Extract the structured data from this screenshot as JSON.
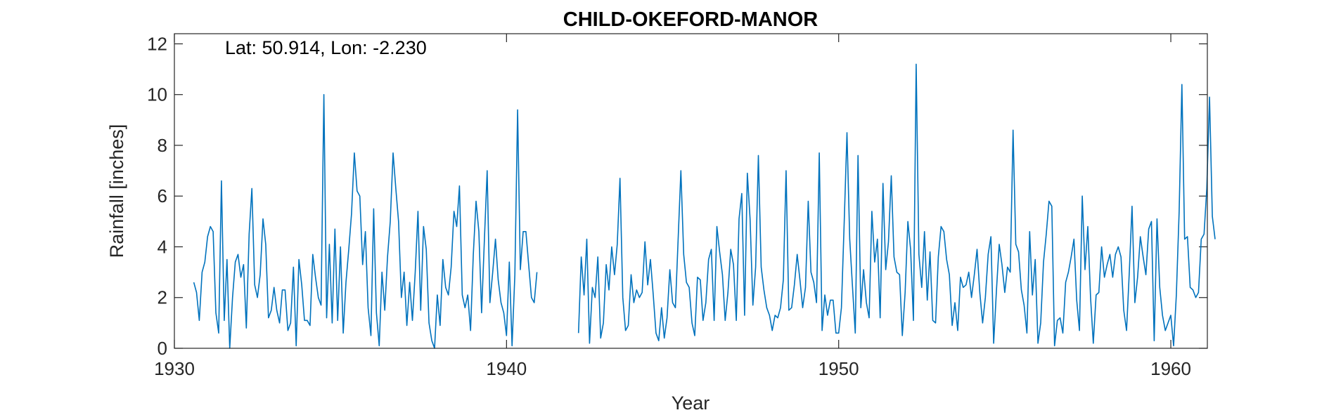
{
  "chart_data": {
    "type": "line",
    "title": "CHILD-OKEFORD-MANOR",
    "annotation": "Lat: 50.914, Lon: -2.230",
    "xlabel": "Year",
    "ylabel": "Rainfall [inches]",
    "xlim": [
      1930,
      1961.1
    ],
    "ylim": [
      0,
      12.4
    ],
    "xticks": [
      1930,
      1940,
      1950,
      1960
    ],
    "xtick_labels": [
      "1930",
      "1940",
      "1950",
      "1960"
    ],
    "yticks": [
      0,
      2,
      4,
      6,
      8,
      10,
      12
    ],
    "ytick_labels": [
      "0",
      "2",
      "4",
      "6",
      "8",
      "10",
      "12"
    ],
    "grid": false,
    "box": true,
    "line_color": "#0072BD",
    "axis_color": "#262626",
    "series": [
      {
        "start_year": 1930,
        "start_month": 8,
        "values": [
          2.6,
          2.2,
          1.1,
          3.0,
          3.4,
          4.4,
          4.8,
          4.6,
          1.4,
          0.6,
          6.6,
          1.1,
          3.5,
          0.0,
          2.0,
          3.4,
          3.7,
          2.8,
          3.3,
          0.8,
          4.5,
          6.3,
          2.5,
          2.0,
          2.9,
          5.1,
          4.1,
          1.2,
          1.5,
          2.4,
          1.5,
          1.0,
          2.3,
          2.3,
          0.7,
          1.0,
          3.2,
          0.1,
          3.5,
          2.5,
          1.1,
          1.1,
          0.9,
          3.7,
          2.8,
          2.0,
          1.7,
          10.0,
          1.2,
          4.1,
          1.0,
          4.7,
          1.1,
          4.0,
          0.6,
          2.6,
          3.9,
          5.3,
          7.7,
          6.2,
          6.0,
          3.3,
          4.6,
          1.6,
          0.5,
          5.5,
          1.4,
          0.1,
          3.0,
          1.5,
          3.6,
          5.0,
          7.7,
          6.3,
          5.0,
          2.0,
          3.0,
          0.9,
          2.6,
          1.1,
          3.0,
          5.4,
          1.5,
          4.8,
          3.9,
          1.0,
          0.3,
          0.0,
          2.1,
          0.9,
          3.5,
          2.4,
          2.1,
          3.2,
          5.4,
          4.8,
          6.4,
          2.1,
          1.6,
          2.1,
          0.7,
          3.7,
          5.8,
          4.6,
          1.4,
          4.3,
          7.0,
          1.8,
          3.0,
          4.3,
          2.7,
          1.8,
          1.4,
          0.5,
          3.4,
          0.1,
          2.9,
          9.4,
          3.1,
          4.6,
          4.6,
          3.3,
          2.0,
          1.8,
          3.0,
          null,
          null,
          null,
          null,
          null,
          null,
          null,
          null,
          null,
          null,
          null,
          null,
          null,
          null,
          0.6,
          3.6,
          2.1,
          4.3,
          0.2,
          2.4,
          2.0,
          3.6,
          0.4,
          1.0,
          3.3,
          2.3,
          4.0,
          2.9,
          4.1,
          6.7,
          2.0,
          0.7,
          0.9,
          2.9,
          1.8,
          2.3,
          2.0,
          2.2,
          4.2,
          2.5,
          3.5,
          2.1,
          0.6,
          0.3,
          1.6,
          0.4,
          1.2,
          3.1,
          1.8,
          1.6,
          4.3,
          7.0,
          3.7,
          2.6,
          2.4,
          1.0,
          0.5,
          2.8,
          2.7,
          1.1,
          1.8,
          3.5,
          3.9,
          1.1,
          4.8,
          3.8,
          2.9,
          1.1,
          2.2,
          3.9,
          3.3,
          1.1,
          5.1,
          6.1,
          1.3,
          6.9,
          5.1,
          1.7,
          3.2,
          7.6,
          3.2,
          2.3,
          1.6,
          1.3,
          0.7,
          1.3,
          1.2,
          1.6,
          2.7,
          7.0,
          1.5,
          1.6,
          2.5,
          3.7,
          2.7,
          1.6,
          2.4,
          5.8,
          3.0,
          2.6,
          1.8,
          7.7,
          0.7,
          2.1,
          1.3,
          1.9,
          1.9,
          0.6,
          0.6,
          1.6,
          5.0,
          8.5,
          4.3,
          2.4,
          0.6,
          7.6,
          1.6,
          3.1,
          1.8,
          1.2,
          5.4,
          3.4,
          4.3,
          1.2,
          6.5,
          3.1,
          4.2,
          6.8,
          3.6,
          3.0,
          2.9,
          0.5,
          2.2,
          5.0,
          3.9,
          1.1,
          11.2,
          3.7,
          2.4,
          4.6,
          1.9,
          3.8,
          1.1,
          1.0,
          3.6,
          4.8,
          4.6,
          3.5,
          2.9,
          0.9,
          1.8,
          0.7,
          2.8,
          2.4,
          2.5,
          3.0,
          2.0,
          2.9,
          3.9,
          2.2,
          1.0,
          2.0,
          3.7,
          4.4,
          0.2,
          2.3,
          4.1,
          3.3,
          2.2,
          3.2,
          3.0,
          8.6,
          4.1,
          3.8,
          2.3,
          1.7,
          0.6,
          4.6,
          2.1,
          3.5,
          0.2,
          1.0,
          3.4,
          4.5,
          5.8,
          5.6,
          0.1,
          1.1,
          1.2,
          0.6,
          2.6,
          3.0,
          3.6,
          4.3,
          1.9,
          0.7,
          6.0,
          3.1,
          4.8,
          2.0,
          0.2,
          2.1,
          2.2,
          4.0,
          2.8,
          3.3,
          3.7,
          2.8,
          3.7,
          4.0,
          3.6,
          1.5,
          0.7,
          3.0,
          5.6,
          1.8,
          2.8,
          4.4,
          3.6,
          2.9,
          4.7,
          5.0,
          0.3,
          5.1,
          2.4,
          1.3,
          0.7,
          1.0,
          1.3,
          0.1,
          2.1,
          5.4,
          10.4,
          4.3,
          4.4,
          2.4,
          2.3,
          2.0,
          2.2,
          4.3,
          4.5,
          6.3,
          9.9,
          5.2,
          4.3
        ]
      }
    ]
  }
}
